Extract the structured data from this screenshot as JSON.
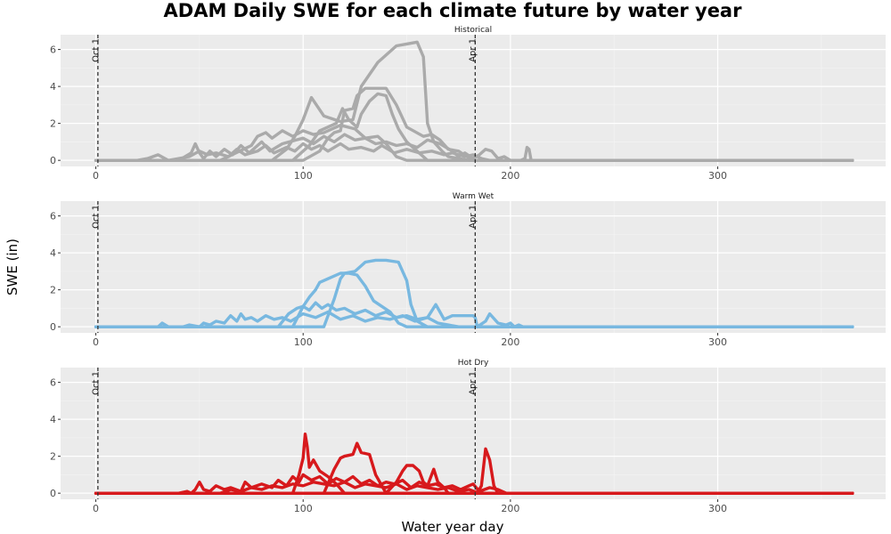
{
  "chart_data": {
    "type": "line",
    "title": "ADAM Daily SWE for each climate future by water year",
    "xlabel": "Water year day",
    "ylabel": "SWE (in)",
    "xlim": [
      -17,
      381
    ],
    "ylim": [
      -0.33,
      6.8
    ],
    "x_ticks": [
      0,
      100,
      200,
      300
    ],
    "y_ticks": [
      0,
      2,
      4,
      6
    ],
    "grid": true,
    "legend": "none",
    "reference_lines": [
      {
        "x": 1,
        "label": "Oct 1"
      },
      {
        "x": 183,
        "label": "Apr 1"
      }
    ],
    "panels": [
      {
        "name": "Historical",
        "color": "#aaaaaa",
        "series": [
          {
            "x": [
              0,
              85,
              92,
              96,
              100,
              104,
              110,
              118,
              124,
              128,
              136,
              145,
              150,
              155,
              158,
              160,
              163,
              167,
              170,
              180,
              365
            ],
            "y": [
              0,
              0,
              0.6,
              1.3,
              2.2,
              3.4,
              2.4,
              2.1,
              2.2,
              4.0,
              5.3,
              6.2,
              6.3,
              6.4,
              5.6,
              2.0,
              1.0,
              0.5,
              0.2,
              0,
              0
            ]
          },
          {
            "x": [
              0,
              100,
              108,
              112,
              115,
              118,
              120,
              124,
              126,
              130,
              140,
              145,
              150,
              158,
              162,
              166,
              170,
              175,
              179,
              182,
              365
            ],
            "y": [
              0,
              0,
              0.5,
              1.2,
              1.5,
              1.6,
              2.7,
              2.8,
              3.5,
              3.9,
              3.9,
              3.0,
              1.8,
              1.3,
              1.4,
              1.1,
              0.6,
              0.5,
              0.2,
              0,
              0
            ]
          },
          {
            "x": [
              0,
              95,
              103,
              108,
              116,
              119,
              122,
              126,
              128,
              132,
              136,
              140,
              143,
              146,
              150,
              160,
              365
            ],
            "y": [
              0,
              0,
              0.8,
              1.6,
              2.0,
              2.8,
              2.2,
              1.8,
              2.5,
              3.2,
              3.6,
              3.5,
              2.5,
              1.7,
              1.0,
              0,
              0
            ]
          },
          {
            "x": [
              0,
              60,
              75,
              78,
              82,
              85,
              90,
              95,
              100,
              105,
              110,
              118,
              125,
              130,
              136,
              140,
              145,
              150,
              365
            ],
            "y": [
              0,
              0,
              0.8,
              1.3,
              1.5,
              1.2,
              1.6,
              1.3,
              1.6,
              1.4,
              1.5,
              1.9,
              1.7,
              1.2,
              1.3,
              0.9,
              0.2,
              0,
              0
            ]
          },
          {
            "x": [
              0,
              40,
              46,
              48,
              50,
              52,
              55,
              58,
              62,
              66,
              70,
              74,
              80,
              84,
              90,
              100,
              105,
              110,
              115,
              120,
              125,
              130,
              135,
              140,
              145,
              150,
              155,
              160,
              166,
              172,
              175,
              178,
              182,
              185,
              188,
              191,
              194,
              197,
              200,
              205,
              207,
              208,
              209,
              210,
              365
            ],
            "y": [
              0,
              0,
              0.4,
              0.9,
              0.4,
              0.1,
              0.5,
              0.2,
              0.6,
              0.3,
              0.8,
              0.4,
              1.0,
              0.5,
              0.9,
              1.2,
              0.9,
              1.3,
              1.0,
              1.4,
              1.1,
              1.2,
              0.9,
              1.0,
              0.8,
              0.9,
              0.7,
              1.1,
              0.9,
              0.5,
              0.2,
              0.4,
              0.1,
              0.3,
              0.6,
              0.5,
              0.1,
              0.2,
              0,
              0,
              0.1,
              0.7,
              0.6,
              0,
              0
            ]
          },
          {
            "x": [
              0,
              20,
              25,
              30,
              35,
              45,
              50,
              54,
              58,
              64,
              68,
              72,
              78,
              82,
              86,
              92,
              96,
              100,
              104,
              108,
              112,
              118,
              122,
              128,
              134,
              138,
              144,
              150,
              156,
              162,
              168,
              172,
              178,
              182,
              186,
              190,
              365
            ],
            "y": [
              0,
              0,
              0.1,
              0.3,
              0,
              0.2,
              0.5,
              0.3,
              0.4,
              0.2,
              0.6,
              0.3,
              0.5,
              0.8,
              0.4,
              0.7,
              0.5,
              0.9,
              0.6,
              0.8,
              0.5,
              0.9,
              0.6,
              0.7,
              0.5,
              0.8,
              0.4,
              0.6,
              0.4,
              0.5,
              0.3,
              0.4,
              0.2,
              0.3,
              0.1,
              0,
              0
            ]
          }
        ]
      },
      {
        "name": "Warm Wet",
        "color": "#78b8e0",
        "series": [
          {
            "x": [
              0,
              110,
              115,
              118,
              120,
              125,
              130,
              135,
              140,
              146,
              150,
              152,
              155,
              160,
              365
            ],
            "y": [
              0,
              0,
              1.5,
              2.6,
              2.9,
              3.0,
              3.5,
              3.6,
              3.6,
              3.5,
              2.5,
              1.2,
              0.3,
              0,
              0
            ]
          },
          {
            "x": [
              0,
              95,
              100,
              103,
              106,
              108,
              112,
              118,
              122,
              126,
              130,
              134,
              138,
              142,
              146,
              150,
              365
            ],
            "y": [
              0,
              0,
              1.1,
              1.6,
              2.0,
              2.4,
              2.6,
              2.9,
              2.9,
              2.8,
              2.2,
              1.4,
              1.1,
              0.8,
              0.2,
              0,
              0
            ]
          },
          {
            "x": [
              0,
              88,
              93,
              97,
              100,
              103,
              106,
              109,
              112,
              116,
              120,
              125,
              130,
              135,
              140,
              145,
              150,
              155,
              160,
              165,
              170,
              175,
              365
            ],
            "y": [
              0,
              0,
              0.7,
              1.0,
              1.1,
              0.9,
              1.3,
              1.0,
              1.2,
              0.9,
              1.0,
              0.7,
              0.9,
              0.6,
              0.8,
              0.5,
              0.6,
              0.4,
              0.5,
              0.2,
              0.1,
              0,
              0
            ]
          },
          {
            "x": [
              0,
              30,
              32,
              35,
              42,
              45,
              50,
              52,
              55,
              58,
              62,
              65,
              68,
              70,
              72,
              75,
              78,
              82,
              86,
              90,
              94,
              100,
              106,
              112,
              118,
              124,
              130,
              136,
              142,
              148,
              154,
              160,
              164,
              166,
              168,
              172,
              175,
              178,
              182,
              183,
              184,
              188,
              190,
              194,
              198,
              200,
              202,
              204,
              206,
              365
            ],
            "y": [
              0,
              0,
              0.2,
              0,
              0,
              0.1,
              0,
              0.2,
              0.1,
              0.3,
              0.2,
              0.6,
              0.3,
              0.7,
              0.4,
              0.5,
              0.3,
              0.6,
              0.4,
              0.5,
              0.3,
              0.7,
              0.5,
              0.8,
              0.4,
              0.6,
              0.3,
              0.5,
              0.4,
              0.6,
              0.3,
              0.5,
              1.2,
              0.8,
              0.4,
              0.6,
              0.6,
              0.6,
              0.6,
              0.5,
              0,
              0.3,
              0.7,
              0.2,
              0.1,
              0.2,
              0,
              0.1,
              0,
              0
            ]
          }
        ]
      },
      {
        "name": "Hot Dry",
        "color": "#d7191c",
        "series": [
          {
            "x": [
              0,
              95,
              98,
              100,
              101,
              102,
              103,
              105,
              108,
              112,
              116,
              120,
              365
            ],
            "y": [
              0,
              0,
              1.0,
              1.9,
              3.2,
              2.5,
              1.4,
              1.8,
              1.2,
              0.9,
              0.5,
              0,
              0
            ]
          },
          {
            "x": [
              0,
              110,
              115,
              118,
              120,
              124,
              126,
              128,
              132,
              135,
              140,
              365
            ],
            "y": [
              0,
              0,
              1.3,
              1.9,
              2.0,
              2.1,
              2.7,
              2.2,
              2.1,
              1.0,
              0,
              0
            ]
          },
          {
            "x": [
              0,
              140,
              145,
              148,
              150,
              153,
              156,
              158,
              160,
              163,
              165,
              168,
              170,
              365
            ],
            "y": [
              0,
              0,
              0.6,
              1.2,
              1.5,
              1.5,
              1.2,
              0.6,
              0.4,
              1.3,
              0.6,
              0.3,
              0,
              0
            ]
          },
          {
            "x": [
              0,
              184,
              186,
              188,
              190,
              192,
              194,
              365
            ],
            "y": [
              0,
              0,
              0.4,
              2.4,
              1.8,
              0.4,
              0,
              0
            ]
          },
          {
            "x": [
              0,
              40,
              44,
              46,
              48,
              50,
              52,
              55,
              58,
              62,
              65,
              70,
              72,
              75,
              80,
              85,
              88,
              92,
              95,
              98,
              100,
              104,
              108,
              112,
              116,
              120,
              124,
              128,
              132,
              136,
              140,
              144,
              148,
              152,
              156,
              160,
              164,
              168,
              172,
              176,
              180,
              182,
              185,
              190,
              194,
              198,
              365
            ],
            "y": [
              0,
              0,
              0.1,
              0,
              0.2,
              0.6,
              0.2,
              0.1,
              0.4,
              0.2,
              0.3,
              0.1,
              0.6,
              0.3,
              0.5,
              0.3,
              0.7,
              0.4,
              0.9,
              0.6,
              1.0,
              0.7,
              0.9,
              0.5,
              0.8,
              0.6,
              0.9,
              0.5,
              0.7,
              0.4,
              0.6,
              0.5,
              0.7,
              0.3,
              0.6,
              0.4,
              0.5,
              0.3,
              0.4,
              0.2,
              0.4,
              0.5,
              0.1,
              0.3,
              0.2,
              0,
              0
            ]
          },
          {
            "x": [
              0,
              60,
              65,
              70,
              75,
              80,
              85,
              90,
              95,
              100,
              105,
              110,
              115,
              120,
              125,
              130,
              135,
              140,
              145,
              150,
              155,
              160,
              165,
              170,
              175,
              180,
              185,
              365
            ],
            "y": [
              0,
              0,
              0.2,
              0.1,
              0.3,
              0.2,
              0.4,
              0.3,
              0.5,
              0.4,
              0.6,
              0.5,
              0.4,
              0.6,
              0.3,
              0.5,
              0.4,
              0.3,
              0.5,
              0.2,
              0.4,
              0.3,
              0.2,
              0.3,
              0.1,
              0.2,
              0,
              0
            ]
          }
        ]
      }
    ]
  }
}
